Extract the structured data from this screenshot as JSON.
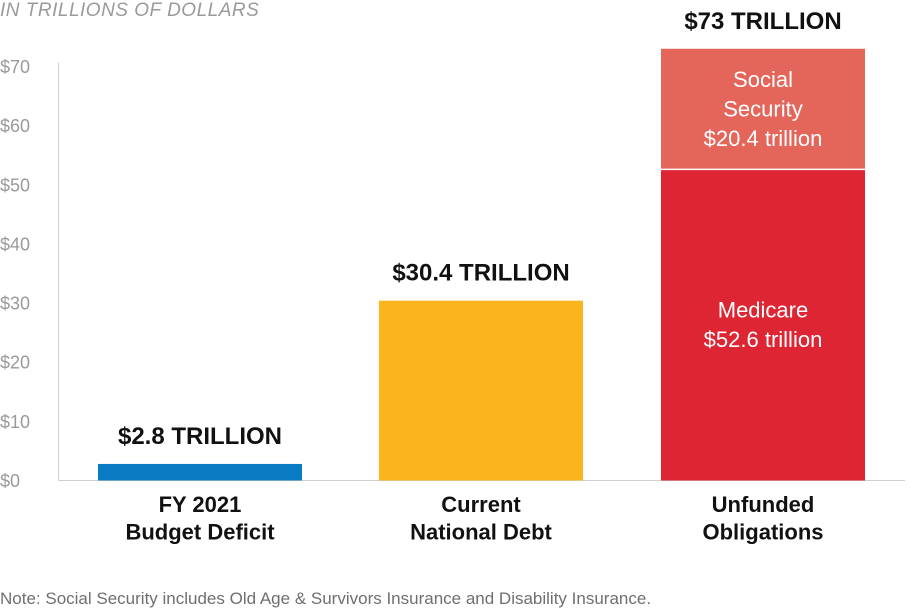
{
  "unit_note": "IN TRILLIONS OF DOLLARS",
  "footnote": "Note: Social Security includes Old Age & Survivors Insurance and Disability Insurance.",
  "colors": {
    "deficit": "#0a7cc3",
    "debt": "#fbb51c",
    "medicare": "#dd2533",
    "social_security": "#e4665b",
    "axis": "#d0d0d0"
  },
  "chart_data": {
    "type": "bar",
    "stacked": true,
    "ylim": [
      0,
      70
    ],
    "yticks": [
      "$0",
      "$10",
      "$20",
      "$30",
      "$40",
      "$50",
      "$60",
      "$70"
    ],
    "ytick_values": [
      0,
      10,
      20,
      30,
      40,
      50,
      60,
      70
    ],
    "grid": false,
    "bars": [
      {
        "category_lines": [
          "FY 2021",
          "Budget Deficit"
        ],
        "total_label": "$2.8 TRILLION",
        "segments": [
          {
            "value": 2.8,
            "color_key": "deficit",
            "label_lines": []
          }
        ]
      },
      {
        "category_lines": [
          "Current",
          "National Debt"
        ],
        "total_label": "$30.4 TRILLION",
        "segments": [
          {
            "value": 30.4,
            "color_key": "debt",
            "label_lines": []
          }
        ]
      },
      {
        "category_lines": [
          "Unfunded",
          "Obligations"
        ],
        "total_label": "$73 TRILLION",
        "segments": [
          {
            "value": 52.6,
            "color_key": "medicare",
            "label_lines": [
              "Medicare",
              "$52.6 trillion"
            ]
          },
          {
            "value": 20.4,
            "color_key": "social_security",
            "label_lines": [
              "Social",
              "Security",
              "$20.4 trillion"
            ]
          }
        ]
      }
    ]
  }
}
